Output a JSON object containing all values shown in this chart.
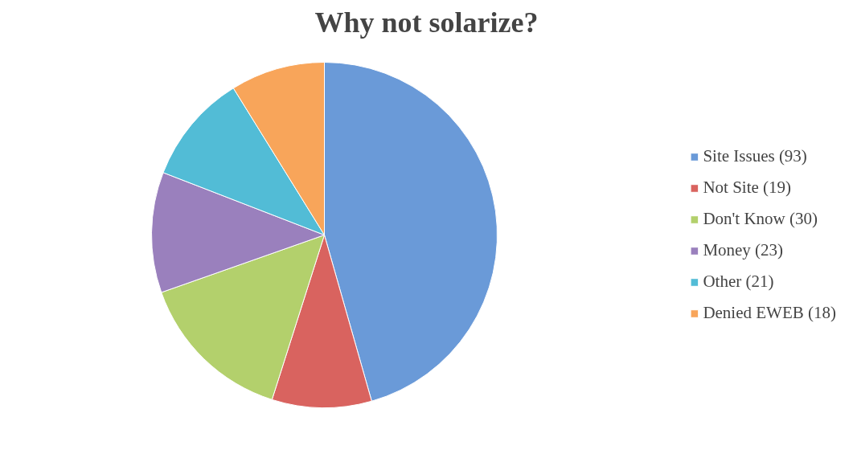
{
  "chart_data": {
    "type": "pie",
    "title": "Why not solarize?",
    "categories": [
      "Site Issues (93)",
      "Not Site (19)",
      "Don't Know (30)",
      "Money (23)",
      "Other (21)",
      "Denied EWEB (18)"
    ],
    "values": [
      93,
      19,
      30,
      23,
      21,
      18
    ],
    "colors": [
      "#6a9ad8",
      "#d9635f",
      "#b3d06c",
      "#9a80bd",
      "#52bcd6",
      "#f8a55a"
    ],
    "legend": "right"
  }
}
